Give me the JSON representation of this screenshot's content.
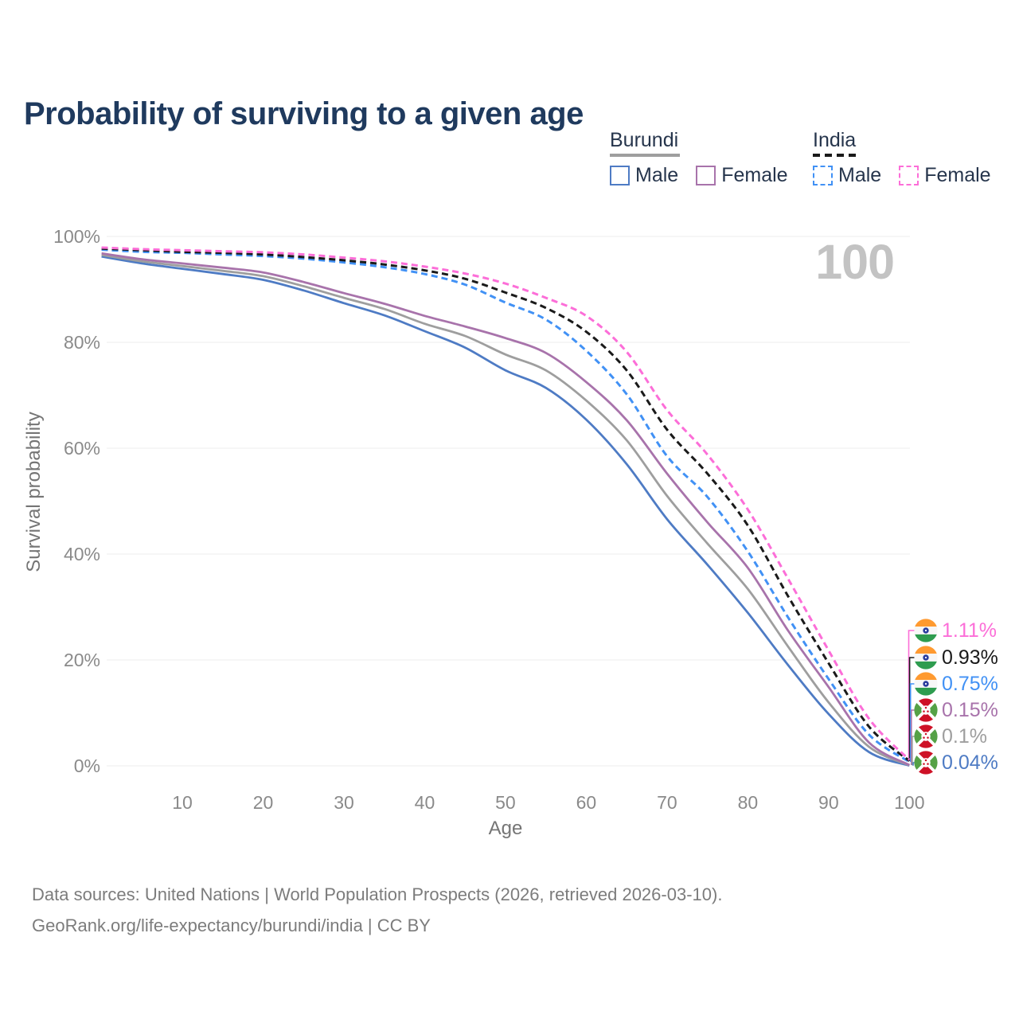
{
  "title": "Probability of surviving to a given age",
  "watermark": "100",
  "legend": {
    "groups": [
      {
        "name": "Burundi",
        "underline_style": "solid",
        "underline_color": "#9e9e9e",
        "underline_width": 88,
        "items": [
          {
            "label": "Male",
            "swatch_color": "#4e7bc4",
            "swatch_style": "solid"
          },
          {
            "label": "Female",
            "swatch_color": "#a873ab",
            "swatch_style": "solid"
          }
        ]
      },
      {
        "name": "India",
        "underline_style": "dashed",
        "underline_color": "#1a1a1a",
        "underline_width": 57,
        "items": [
          {
            "label": "Male",
            "swatch_color": "#4191f5",
            "swatch_style": "dashed"
          },
          {
            "label": "Female",
            "swatch_color": "#fc6ed8",
            "swatch_style": "dashed"
          }
        ]
      }
    ]
  },
  "chart_data": {
    "type": "line",
    "title": "Probability of surviving to a given age",
    "xlabel": "Age",
    "ylabel": "Survival probability",
    "xlim": [
      0,
      100
    ],
    "ylim": [
      0,
      100
    ],
    "grid": "horizontal",
    "x_ticks": [
      10,
      20,
      30,
      40,
      50,
      60,
      70,
      80,
      90,
      100
    ],
    "y_ticks": [
      {
        "value": 0,
        "label": "0%"
      },
      {
        "value": 20,
        "label": "20%"
      },
      {
        "value": 40,
        "label": "40%"
      },
      {
        "value": 60,
        "label": "60%"
      },
      {
        "value": 80,
        "label": "80%"
      },
      {
        "value": 100,
        "label": "100%"
      }
    ],
    "highlighted_age": "100",
    "ages": [
      0,
      5,
      10,
      15,
      20,
      25,
      30,
      35,
      40,
      45,
      50,
      55,
      60,
      65,
      70,
      75,
      80,
      85,
      90,
      95,
      100
    ],
    "series": [
      {
        "name": "Burundi Male",
        "country": "Burundi",
        "sex": "Male",
        "style": "solid",
        "color": "#4e7bc4",
        "end_label": "0.04%",
        "values": [
          96.2,
          94.9,
          93.9,
          92.9,
          91.8,
          89.8,
          87.4,
          85.1,
          82.1,
          79.0,
          74.7,
          71.4,
          65.4,
          57.0,
          46.6,
          38.0,
          28.9,
          19.0,
          9.8,
          2.6,
          0.04
        ]
      },
      {
        "name": "Burundi Both sexes",
        "country": "Burundi",
        "sex": "Both",
        "style": "solid",
        "color": "#9e9e9e",
        "end_label": "0.1%",
        "values": [
          96.5,
          95.3,
          94.4,
          93.5,
          92.5,
          90.6,
          88.4,
          86.3,
          83.5,
          81.2,
          77.7,
          74.7,
          69.0,
          61.5,
          51.0,
          42.0,
          33.4,
          22.5,
          12.0,
          3.6,
          0.1
        ]
      },
      {
        "name": "Burundi Female",
        "country": "Burundi",
        "sex": "Female",
        "style": "solid",
        "color": "#a873ab",
        "end_label": "0.15%",
        "values": [
          96.8,
          95.7,
          94.9,
          94.1,
          93.2,
          91.4,
          89.3,
          87.3,
          85.0,
          83.0,
          80.8,
          78.0,
          72.5,
          65.3,
          55.2,
          46.0,
          37.4,
          25.5,
          14.9,
          4.4,
          0.15
        ]
      },
      {
        "name": "India Male",
        "country": "India",
        "sex": "Male",
        "style": "dashed",
        "color": "#4191f5",
        "end_label": "0.75%",
        "values": [
          97.5,
          97.1,
          96.9,
          96.6,
          96.3,
          95.8,
          95.1,
          94.2,
          92.9,
          90.9,
          87.5,
          84.3,
          78.4,
          70.2,
          58.5,
          50.8,
          40.5,
          28.0,
          16.4,
          5.9,
          0.75
        ]
      },
      {
        "name": "India Both sexes",
        "country": "India",
        "sex": "Both",
        "style": "dashed",
        "color": "#1a1a1a",
        "end_label": "0.93%",
        "values": [
          97.7,
          97.4,
          97.1,
          96.9,
          96.6,
          96.1,
          95.5,
          94.7,
          93.6,
          92.0,
          89.4,
          86.5,
          82.0,
          74.7,
          63.5,
          55.2,
          45.4,
          32.0,
          19.4,
          7.4,
          0.93
        ]
      },
      {
        "name": "India Female",
        "country": "India",
        "sex": "Female",
        "style": "dashed",
        "color": "#fc6ed8",
        "end_label": "1.11%",
        "values": [
          97.9,
          97.6,
          97.4,
          97.2,
          97.0,
          96.6,
          96.0,
          95.3,
          94.3,
          93.0,
          91.1,
          88.4,
          85.0,
          78.2,
          67.2,
          58.8,
          48.4,
          35.3,
          21.8,
          8.9,
          1.11
        ]
      }
    ]
  },
  "footer": {
    "line1": "Data sources: United Nations | World Population Prospects (2026, retrieved 2026-03-10).",
    "line2": "GeoRank.org/life-expectancy/burundi/india | CC BY"
  }
}
